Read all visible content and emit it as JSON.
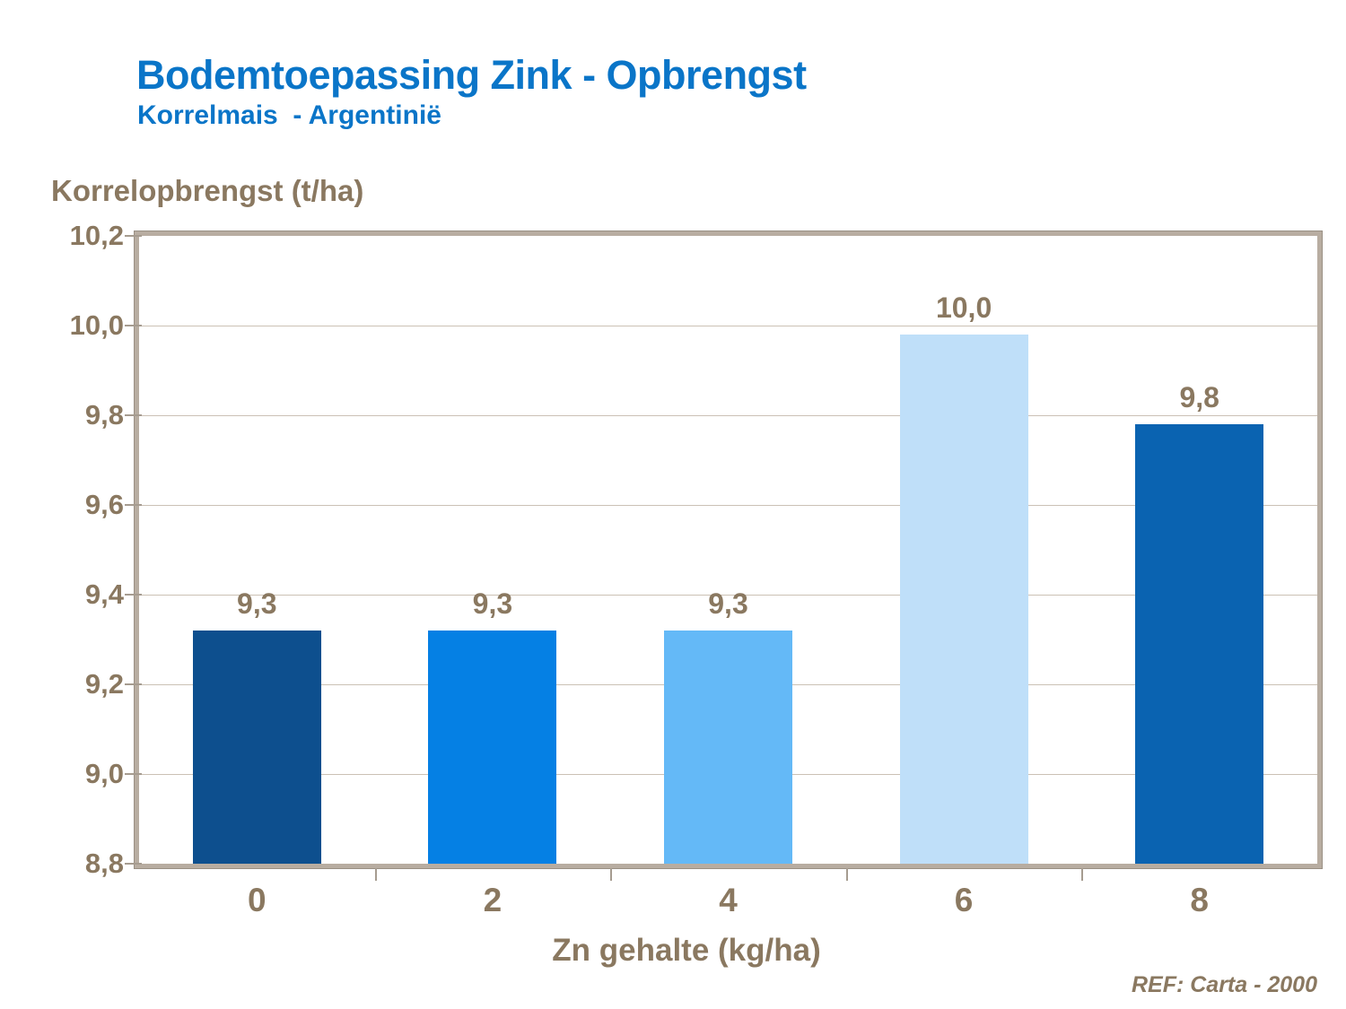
{
  "header": {
    "title": "Bodemtoepassing Zink - Opbrengst",
    "subtitle": "Korrelmais  - Argentinië"
  },
  "chart_data": {
    "type": "bar",
    "title": "Bodemtoepassing Zink - Opbrengst",
    "subtitle": "Korrelmais - Argentinië",
    "ylabel": "Korrelopbrengst (t/ha)",
    "xlabel": "Zn gehalte (kg/ha)",
    "categories": [
      "0",
      "2",
      "4",
      "6",
      "8"
    ],
    "values": [
      9.32,
      9.32,
      9.32,
      9.98,
      9.78
    ],
    "data_labels": [
      "9,3",
      "9,3",
      "9,3",
      "10,0",
      "9,8"
    ],
    "bar_colors": [
      "#0D4F8E",
      "#0580E4",
      "#64B9F7",
      "#BFDFF9",
      "#0A63B1"
    ],
    "ylim": [
      8.8,
      10.2
    ],
    "ytick_step": 0.2,
    "ytick_labels_top_to_bottom": [
      "10,2",
      "10,0",
      "9,8",
      "9,6",
      "9,4",
      "9,2",
      "9,0",
      "8,8"
    ],
    "grid": "horizontal",
    "legend": "none"
  },
  "footer": {
    "reference": "REF: Carta - 2000"
  },
  "colors": {
    "title_blue": "#0A75C8",
    "text_brown": "#8A7860",
    "grid_line": "#CBC1B5",
    "frame_tan": "#B8ADA1",
    "tick": "#A69C90"
  }
}
